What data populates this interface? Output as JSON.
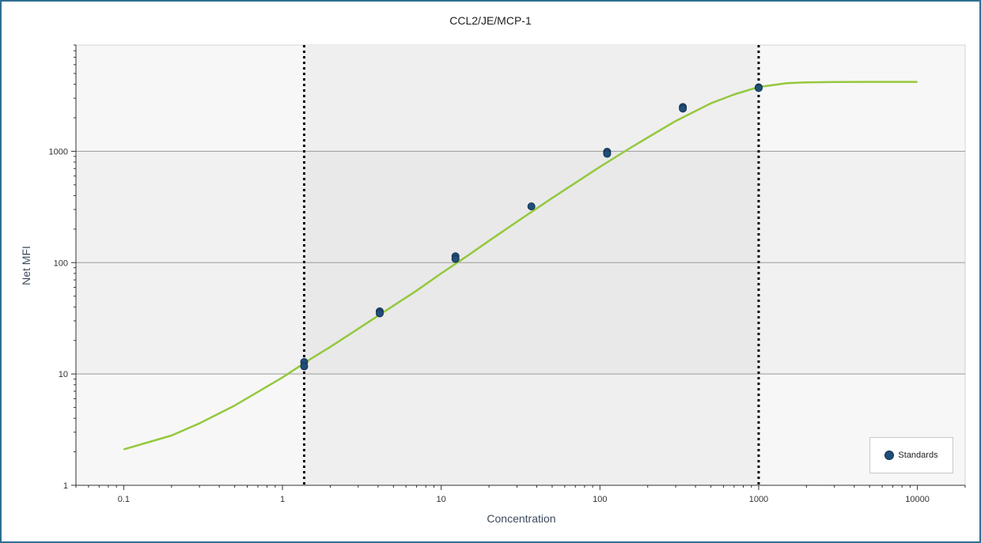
{
  "chart_data": {
    "type": "scatter",
    "title": "CCL2/JE/MCP-1",
    "xlabel": "Concentration",
    "ylabel": "Net MFI",
    "x_scale": "log",
    "y_scale": "log",
    "xlim": [
      0.05,
      20000
    ],
    "ylim": [
      1,
      9000
    ],
    "x_ticks": [
      "0.1",
      "1",
      "10",
      "100",
      "1000",
      "10000"
    ],
    "x_tick_values": [
      0.1,
      1,
      10,
      100,
      1000,
      10000
    ],
    "y_ticks": [
      "1",
      "10",
      "100",
      "1000"
    ],
    "y_tick_values": [
      1,
      10,
      100,
      1000
    ],
    "grid": "horizontal",
    "legend_position": "bottom-right",
    "series": [
      {
        "name": "Standards",
        "color": "#1f4e79",
        "points": [
          {
            "x": 1.37,
            "y": 12.8
          },
          {
            "x": 1.37,
            "y": 11.7
          },
          {
            "x": 4.1,
            "y": 36.5
          },
          {
            "x": 4.1,
            "y": 35.0
          },
          {
            "x": 12.3,
            "y": 114
          },
          {
            "x": 12.3,
            "y": 108
          },
          {
            "x": 37,
            "y": 320
          },
          {
            "x": 111,
            "y": 990
          },
          {
            "x": 111,
            "y": 950
          },
          {
            "x": 333,
            "y": 2500
          },
          {
            "x": 333,
            "y": 2420
          },
          {
            "x": 1000,
            "y": 3750
          },
          {
            "x": 1000,
            "y": 3700
          }
        ]
      }
    ],
    "fit_curve": {
      "color": "#94c83d",
      "x": [
        0.1,
        0.2,
        0.3,
        0.5,
        0.7,
        1,
        1.5,
        2,
        3,
        5,
        7,
        10,
        15,
        20,
        30,
        50,
        70,
        100,
        150,
        200,
        300,
        500,
        700,
        1000,
        1500,
        2000,
        3000,
        5000,
        7000,
        10000
      ],
      "y": [
        2.1,
        2.8,
        3.6,
        5.2,
        6.9,
        9.3,
        13.6,
        17.5,
        25.5,
        41,
        56,
        80,
        118,
        157,
        233,
        380,
        520,
        725,
        1040,
        1330,
        1870,
        2700,
        3240,
        3780,
        4090,
        4160,
        4190,
        4200,
        4200,
        4200
      ]
    },
    "range_bounds": [
      1.37,
      1000
    ],
    "shaded_band_y": [
      10,
      1000
    ]
  }
}
